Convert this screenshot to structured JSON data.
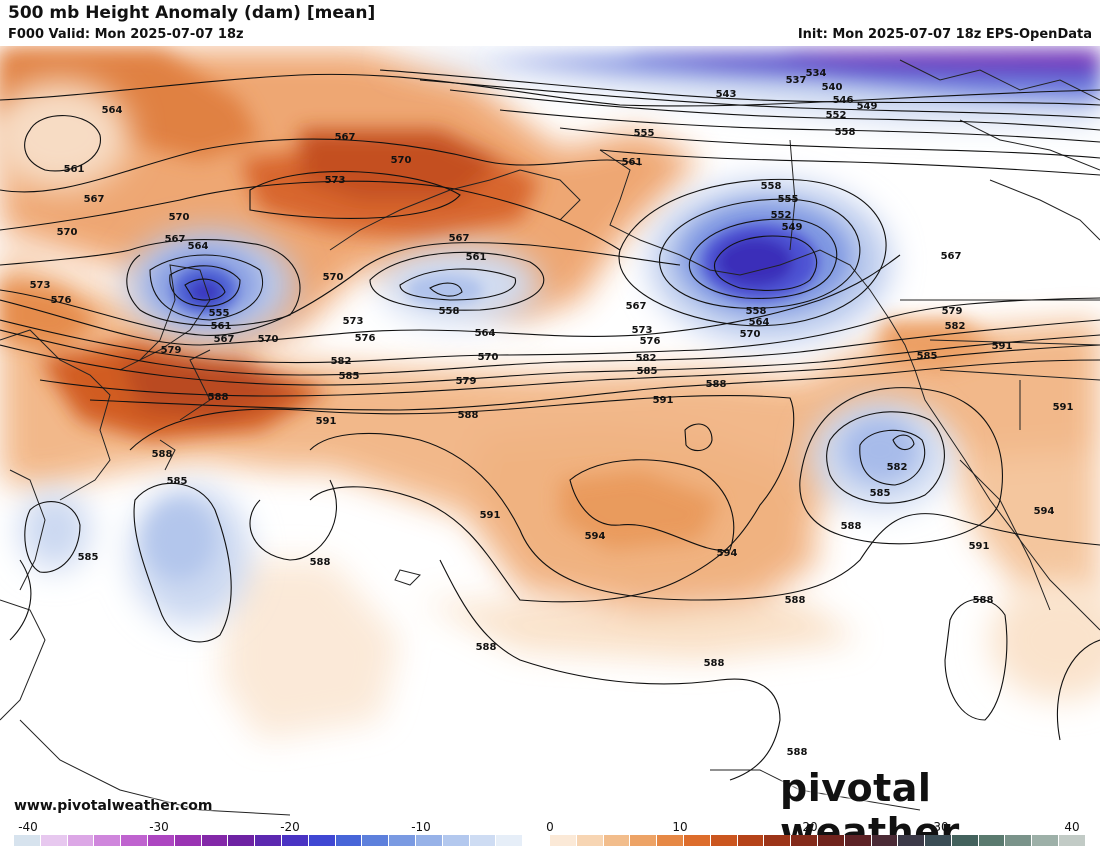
{
  "header": {
    "title": "500 mb Height Anomaly (dam) [mean]",
    "valid": "F000 Valid: Mon 2025-07-07 18z",
    "init": "Init: Mon 2025-07-07 18z EPS-OpenData"
  },
  "watermark": {
    "site": "www.pivotalweather.com",
    "brand": "pivotal weather"
  },
  "colorbar": {
    "ticks": [
      "-40",
      "-30",
      "-20",
      "-10",
      "0",
      "10",
      "20",
      "30",
      "40"
    ],
    "colors": [
      "#d7e3ee",
      "#e7c8ef",
      "#dca7e6",
      "#cf86dc",
      "#bf63cf",
      "#ad46c1",
      "#9a33b3",
      "#8328a8",
      "#6e22a3",
      "#5c28b0",
      "#4a33c3",
      "#3f47d3",
      "#4765d8",
      "#5d80dc",
      "#7a9ae2",
      "#97b2e8",
      "#b3c8ee",
      "#cedcf3",
      "#e6eef8",
      "#ffffff",
      "#fbe9d7",
      "#f7d5b3",
      "#f2bd8c",
      "#eda366",
      "#e68845",
      "#dd6d2c",
      "#cb561f",
      "#b54319",
      "#9c3418",
      "#842a1a",
      "#70231d",
      "#5d2226",
      "#4b2a35",
      "#3c3a48",
      "#3b4d55",
      "#43625d",
      "#5a7a6f",
      "#7a938a",
      "#9db0a8",
      "#c2cbc6"
    ]
  },
  "contours": {
    "labels": [
      "564",
      "561",
      "567",
      "567",
      "570",
      "573",
      "570",
      "570",
      "567",
      "564",
      "555",
      "561",
      "567",
      "570",
      "573",
      "576",
      "579",
      "582",
      "585",
      "588",
      "561",
      "558",
      "564",
      "567",
      "570",
      "573",
      "576",
      "570",
      "579",
      "582",
      "585",
      "588",
      "591",
      "588",
      "534",
      "537",
      "540",
      "543",
      "546",
      "549",
      "552",
      "555",
      "558",
      "561",
      "558",
      "555",
      "552",
      "549",
      "558",
      "564",
      "570",
      "567",
      "573",
      "576",
      "579",
      "582",
      "585",
      "591",
      "591",
      "582",
      "585",
      "588",
      "594",
      "594",
      "591",
      "594",
      "591",
      "588",
      "588",
      "588",
      "588",
      "588",
      "588",
      "588",
      "585",
      "585",
      "567",
      "591"
    ]
  },
  "colors": {
    "negative_deep": "#3c34c8",
    "negative_light": "#b9cde9",
    "positive_light": "#f7cfa6",
    "positive_deep": "#c85418",
    "contour": "#111111",
    "coast": "#222222"
  }
}
